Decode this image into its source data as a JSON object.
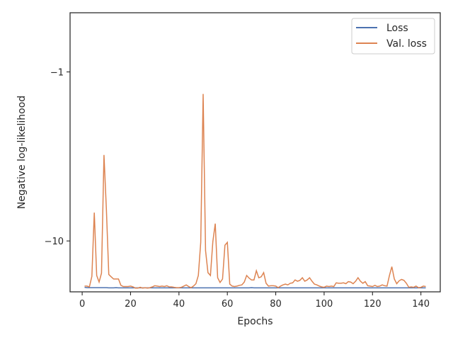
{
  "chart_data": {
    "type": "line",
    "xlabel": "Epochs",
    "ylabel": "Negative log-likelihood",
    "yscale": "symlog-negative",
    "xlim": [
      -5,
      148
    ],
    "ylim": [
      -20,
      -0.65
    ],
    "xticks": [
      0,
      20,
      40,
      60,
      80,
      100,
      120,
      140
    ],
    "xtick_labels": [
      "0",
      "20",
      "40",
      "60",
      "80",
      "100",
      "120",
      "140"
    ],
    "yticks": [
      -1,
      -10
    ],
    "ytick_labels": [
      "−1",
      "−10"
    ],
    "grid": false,
    "legend": {
      "placement": "top-right"
    },
    "colors": {
      "Loss": "#4c72b0",
      "Val. loss": "#dd8452"
    },
    "x": [
      1,
      2,
      3,
      4,
      5,
      6,
      7,
      8,
      9,
      10,
      11,
      12,
      13,
      14,
      15,
      16,
      17,
      18,
      19,
      20,
      21,
      22,
      23,
      24,
      25,
      26,
      27,
      28,
      29,
      30,
      31,
      32,
      33,
      34,
      35,
      36,
      37,
      38,
      39,
      40,
      41,
      42,
      43,
      44,
      45,
      46,
      47,
      48,
      49,
      50,
      51,
      52,
      53,
      54,
      55,
      56,
      57,
      58,
      59,
      60,
      61,
      62,
      63,
      64,
      65,
      66,
      67,
      68,
      69,
      70,
      71,
      72,
      73,
      74,
      75,
      76,
      77,
      78,
      79,
      80,
      81,
      82,
      83,
      84,
      85,
      86,
      87,
      88,
      89,
      90,
      91,
      92,
      93,
      94,
      95,
      96,
      97,
      98,
      99,
      100,
      101,
      102,
      103,
      104,
      105,
      106,
      107,
      108,
      109,
      110,
      111,
      112,
      113,
      114,
      115,
      116,
      117,
      118,
      119,
      120,
      121,
      122,
      123,
      124,
      125,
      126,
      127,
      128,
      129,
      130,
      131,
      132,
      133,
      134,
      135,
      136,
      137,
      138,
      139,
      140,
      141,
      142
    ],
    "series": [
      {
        "name": "Loss",
        "values": [
          -18.8,
          -18.9,
          -18.9,
          -18.9,
          -18.9,
          -18.9,
          -18.9,
          -18.9,
          -18.9,
          -18.9,
          -18.95,
          -18.95,
          -18.95,
          -18.9,
          -18.95,
          -18.95,
          -18.95,
          -18.95,
          -18.95,
          -18.95,
          -18.95,
          -18.95,
          -18.95,
          -18.95,
          -18.95,
          -18.95,
          -18.95,
          -18.95,
          -18.95,
          -18.95,
          -18.95,
          -18.95,
          -18.95,
          -18.95,
          -18.95,
          -18.95,
          -18.95,
          -18.95,
          -18.95,
          -18.95,
          -18.95,
          -18.95,
          -18.95,
          -18.95,
          -18.95,
          -18.95,
          -18.95,
          -18.95,
          -18.95,
          -18.95,
          -18.95,
          -18.95,
          -18.95,
          -18.95,
          -18.95,
          -18.95,
          -18.95,
          -18.95,
          -18.95,
          -18.95,
          -18.95,
          -18.95,
          -18.95,
          -18.95,
          -18.95,
          -18.95,
          -18.95,
          -18.95,
          -18.95,
          -18.9,
          -18.95,
          -18.95,
          -18.95,
          -18.95,
          -18.95,
          -18.95,
          -18.95,
          -18.95,
          -18.95,
          -18.95,
          -18.95,
          -18.95,
          -18.95,
          -18.95,
          -18.95,
          -18.95,
          -18.95,
          -18.95,
          -18.95,
          -18.95,
          -18.95,
          -18.95,
          -18.95,
          -18.95,
          -18.95,
          -18.95,
          -18.95,
          -18.95,
          -18.95,
          -18.95,
          -18.95,
          -18.95,
          -18.95,
          -18.95,
          -18.95,
          -18.95,
          -18.95,
          -18.95,
          -18.95,
          -18.95,
          -18.95,
          -18.95,
          -18.95,
          -18.95,
          -18.95,
          -18.95,
          -18.95,
          -18.95,
          -18.95,
          -18.95,
          -18.95,
          -18.95,
          -18.95,
          -18.95,
          -18.95,
          -18.95,
          -18.95,
          -18.95,
          -18.95,
          -18.95,
          -18.95,
          -18.95,
          -18.95,
          -18.95,
          -18.95,
          -18.95,
          -18.95,
          -18.95,
          -18.95,
          -18.95,
          -18.95,
          -18.95
        ]
      },
      {
        "name": "Val. loss",
        "values": [
          -18.5,
          -18.5,
          -18.7,
          -16.2,
          -6.8,
          -16.0,
          -17.5,
          -15.5,
          -3.1,
          -6.5,
          -15.8,
          -16.3,
          -16.8,
          -16.8,
          -16.8,
          -18.3,
          -18.6,
          -18.6,
          -18.6,
          -18.5,
          -18.7,
          -19.0,
          -19.0,
          -18.8,
          -19.0,
          -18.9,
          -19.0,
          -18.9,
          -18.7,
          -18.4,
          -18.5,
          -18.6,
          -18.5,
          -18.6,
          -18.4,
          -18.7,
          -18.7,
          -18.8,
          -18.9,
          -18.9,
          -18.8,
          -18.5,
          -18.2,
          -18.6,
          -18.9,
          -18.5,
          -17.9,
          -16.0,
          -10.2,
          -1.35,
          -11.4,
          -15.4,
          -16.0,
          -10.1,
          -7.9,
          -16.5,
          -17.6,
          -16.8,
          -10.6,
          -10.2,
          -18.0,
          -18.5,
          -18.6,
          -18.5,
          -18.3,
          -18.2,
          -17.5,
          -16.0,
          -16.6,
          -17.0,
          -17.0,
          -15.0,
          -16.5,
          -16.3,
          -15.4,
          -17.8,
          -18.5,
          -18.4,
          -18.4,
          -18.5,
          -18.9,
          -18.5,
          -18.2,
          -18.0,
          -18.2,
          -17.8,
          -17.7,
          -17.0,
          -17.3,
          -17.1,
          -16.5,
          -17.3,
          -17.0,
          -16.5,
          -17.3,
          -18.0,
          -18.2,
          -18.5,
          -18.7,
          -18.8,
          -18.5,
          -18.6,
          -18.5,
          -18.6,
          -17.7,
          -17.8,
          -17.8,
          -17.7,
          -17.9,
          -17.4,
          -17.5,
          -17.9,
          -17.3,
          -16.5,
          -17.3,
          -17.8,
          -17.4,
          -18.4,
          -18.5,
          -18.6,
          -18.3,
          -18.6,
          -18.5,
          -18.2,
          -18.4,
          -18.5,
          -16.0,
          -14.2,
          -16.8,
          -17.9,
          -17.2,
          -16.9,
          -17.1,
          -17.8,
          -18.8,
          -18.7,
          -18.8,
          -18.5,
          -18.9,
          -18.8,
          -18.5,
          -18.6
        ]
      }
    ]
  }
}
